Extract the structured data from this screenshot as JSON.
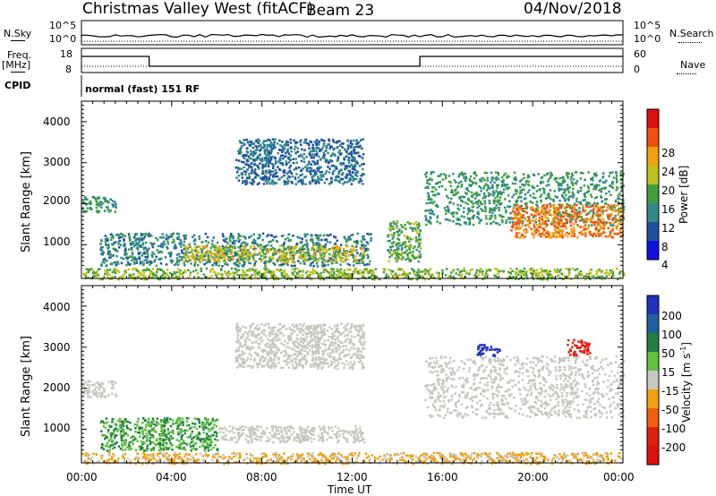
{
  "header": {
    "station": "Christmas Valley West (fitACF)",
    "beam": "Beam 23",
    "date": "04/Nov/2018"
  },
  "top_panels": {
    "left_labels": {
      "nsky": "N.Sky",
      "freq": "Freq.",
      "mhz": "[MHz]",
      "cpid": "CPID"
    },
    "right_labels": {
      "nsearch": "N.Search",
      "nave": "Nave"
    },
    "nsky_ticks": [
      "10^5",
      "10^0"
    ],
    "nsearch_ticks": [
      "10^5",
      "10^0"
    ],
    "freq_ticks": [
      "18",
      "8"
    ],
    "nave_ticks": [
      "60",
      "0"
    ],
    "cpid_text": "normal (fast) 151 RF"
  },
  "axes": {
    "x_ticks": [
      "00:00",
      "04:00",
      "08:00",
      "12:00",
      "16:00",
      "20:00",
      "00:00"
    ],
    "xlabel": "Time UT",
    "y_ticks": [
      "1000",
      "2000",
      "3000",
      "4000"
    ],
    "ylabel": "Slant Range [km]"
  },
  "colorbars": {
    "power": {
      "label": "Power [dB]",
      "ticks": [
        "4",
        "8",
        "12",
        "16",
        "20",
        "24",
        "28"
      ],
      "colors": [
        "#1010e0",
        "#2050a0",
        "#308a8a",
        "#40a040",
        "#c0c020",
        "#f0a010",
        "#f05010",
        "#e01010"
      ]
    },
    "velocity": {
      "label": "Velocity [m s",
      "label_sup": "-1",
      "label_end": "]",
      "ticks": [
        "200",
        "100",
        "50",
        "15",
        "-15",
        "-50",
        "-100",
        "-200"
      ],
      "colors": [
        "#2030c0",
        "#2060a0",
        "#208040",
        "#60c040",
        "#c8c8c0",
        "#f0a010",
        "#f06010",
        "#e02010",
        "#e01010"
      ]
    }
  },
  "chart_data": [
    {
      "type": "heatmap",
      "title": "Power",
      "x_range_hours": [
        0,
        24
      ],
      "y_range_km": [
        180,
        4500
      ],
      "regions": [
        {
          "t": [
            0.0,
            1.5
          ],
          "r": [
            1800,
            2200
          ],
          "level": 12
        },
        {
          "t": [
            0.8,
            12.8
          ],
          "r": [
            500,
            1300
          ],
          "level": 10
        },
        {
          "t": [
            4.5,
            12.5
          ],
          "r": [
            600,
            1000
          ],
          "level": 18
        },
        {
          "t": [
            6.8,
            12.5
          ],
          "r": [
            2500,
            3600
          ],
          "level": 8
        },
        {
          "t": [
            13.5,
            15.0
          ],
          "r": [
            600,
            1600
          ],
          "level": 14
        },
        {
          "t": [
            15.2,
            24.0
          ],
          "r": [
            1500,
            2800
          ],
          "level": 12
        },
        {
          "t": [
            19.0,
            24.0
          ],
          "r": [
            1200,
            2000
          ],
          "level": 24
        },
        {
          "t": [
            0.0,
            24.0
          ],
          "r": [
            180,
            450
          ],
          "level": 16
        }
      ]
    },
    {
      "type": "heatmap",
      "title": "Velocity",
      "x_range_hours": [
        0,
        24
      ],
      "y_range_km": [
        180,
        4500
      ],
      "regions": [
        {
          "t": [
            0.0,
            1.5
          ],
          "r": [
            1800,
            2200
          ],
          "value": 0
        },
        {
          "t": [
            0.8,
            6.0
          ],
          "r": [
            500,
            1300
          ],
          "value": 30
        },
        {
          "t": [
            6.0,
            12.5
          ],
          "r": [
            700,
            1100
          ],
          "value": 0
        },
        {
          "t": [
            6.8,
            12.5
          ],
          "r": [
            2500,
            3600
          ],
          "value": 0
        },
        {
          "t": [
            15.2,
            24.0
          ],
          "r": [
            1300,
            2800
          ],
          "value": 0
        },
        {
          "t": [
            21.5,
            22.5
          ],
          "r": [
            2800,
            3200
          ],
          "value": -200
        },
        {
          "t": [
            17.5,
            18.5
          ],
          "r": [
            2800,
            3100
          ],
          "value": 200
        },
        {
          "t": [
            0.0,
            24.0
          ],
          "r": [
            180,
            450
          ],
          "value": -20
        }
      ]
    }
  ]
}
